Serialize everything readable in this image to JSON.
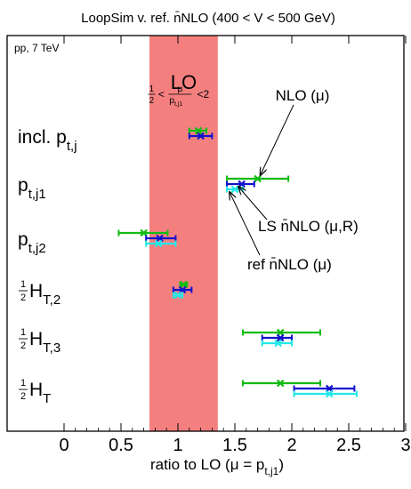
{
  "chart_data": {
    "type": "errorbar",
    "title": "LoopSim v. ref. n̄NLO (400 < V < 500 GeV)",
    "process_label": "pp, 7 TeV",
    "xlabel": "ratio to LO (μ = p",
    "xlabel_sub": "t,j1",
    "xlabel_close": ")",
    "xlim": [
      -0.55,
      3.0
    ],
    "x_ticks": [
      0,
      0.5,
      1,
      1.5,
      2,
      2.5,
      3
    ],
    "x_tick_labels": [
      "0",
      "0.5",
      "1",
      "1.5",
      "2",
      "2.5",
      "3"
    ],
    "lo_band": {
      "range": [
        0.75,
        1.35
      ],
      "label": "LO",
      "condition": "½< μ/p_{t,j1} <2",
      "cond_prefix": "<",
      "cond_num": "μ",
      "cond_den": "p",
      "cond_den_sub": "t,j1",
      "cond_suffix": "<2",
      "color": "#f47f7f"
    },
    "series": [
      {
        "name": "NLO (μ)",
        "color": "#11bb11"
      },
      {
        "name": "LS n̄NLO (μ,R)",
        "color": "#1111cc"
      },
      {
        "name": "ref n̄NLO (μ)",
        "color": "#22e8e8"
      }
    ],
    "categories": [
      {
        "label": "incl. p",
        "sub": "t,j",
        "frac": false,
        "points": [
          {
            "series": 0,
            "value": 1.18,
            "low": 1.1,
            "high": 1.25
          },
          {
            "series": 1,
            "value": 1.2,
            "low": 1.1,
            "high": 1.3
          }
        ]
      },
      {
        "label": "p",
        "sub": "t,j1",
        "frac": false,
        "points": [
          {
            "series": 0,
            "value": 1.7,
            "low": 1.43,
            "high": 1.97
          },
          {
            "series": 1,
            "value": 1.56,
            "low": 1.43,
            "high": 1.67
          },
          {
            "series": 2,
            "value": 1.5,
            "low": 1.43,
            "high": 1.57
          }
        ]
      },
      {
        "label": "p",
        "sub": "t,j2",
        "frac": false,
        "points": [
          {
            "series": 0,
            "value": 0.7,
            "low": 0.48,
            "high": 0.91
          },
          {
            "series": 1,
            "value": 0.84,
            "low": 0.72,
            "high": 0.98
          },
          {
            "series": 2,
            "value": 0.83,
            "low": 0.72,
            "high": 0.98
          }
        ]
      },
      {
        "label": "H",
        "sub": "T,2",
        "frac": true,
        "points": [
          {
            "series": 0,
            "value": 1.05,
            "low": 1.02,
            "high": 1.08
          },
          {
            "series": 1,
            "value": 1.04,
            "low": 0.96,
            "high": 1.12
          },
          {
            "series": 2,
            "value": 1.0,
            "low": 0.96,
            "high": 1.04
          }
        ]
      },
      {
        "label": "H",
        "sub": "T,3",
        "frac": true,
        "points": [
          {
            "series": 0,
            "value": 1.9,
            "low": 1.57,
            "high": 2.25
          },
          {
            "series": 1,
            "value": 1.9,
            "low": 1.74,
            "high": 2.0
          },
          {
            "series": 2,
            "value": 1.88,
            "low": 1.74,
            "high": 2.0
          }
        ]
      },
      {
        "label": "H",
        "sub": "T",
        "frac": true,
        "points": [
          {
            "series": 0,
            "value": 1.9,
            "low": 1.57,
            "high": 2.25
          },
          {
            "series": 1,
            "value": 2.33,
            "low": 2.02,
            "high": 2.55
          },
          {
            "series": 2,
            "value": 2.33,
            "low": 2.02,
            "high": 2.57
          }
        ]
      }
    ],
    "frac_num": "1",
    "frac_den": "2",
    "annotations": [
      {
        "text": "NLO (μ)",
        "series": 0,
        "category": 1
      },
      {
        "text": "LS n̄NLO (μ,R)",
        "series": 1,
        "category": 1
      },
      {
        "text": "ref n̄NLO (μ)",
        "series": 2,
        "category": 1
      }
    ],
    "grid": false,
    "legend": "none"
  }
}
